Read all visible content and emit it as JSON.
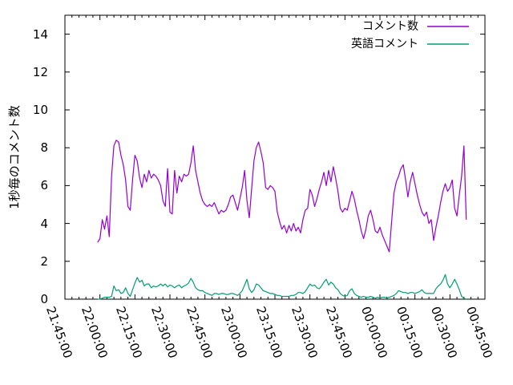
{
  "chart_data": {
    "type": "line",
    "title": "",
    "xlabel": "",
    "ylabel": "1秒毎のコメント数",
    "ylim": [
      0,
      15
    ],
    "yticks": [
      0,
      2,
      4,
      6,
      8,
      10,
      12,
      14
    ],
    "x_minutes_range": [
      0,
      180
    ],
    "x_minor_tick_step_minutes": 3,
    "x_major_tick_step_minutes": 15,
    "grid": false,
    "legend_position": "top-right-inside",
    "colors": {
      "axis": "#000000",
      "background": "#ffffff"
    },
    "xticks": [
      {
        "minute": 0,
        "label": "21:45:00"
      },
      {
        "minute": 15,
        "label": "22:00:00"
      },
      {
        "minute": 30,
        "label": "22:15:00"
      },
      {
        "minute": 45,
        "label": "22:30:00"
      },
      {
        "minute": 60,
        "label": "22:45:00"
      },
      {
        "minute": 75,
        "label": "23:00:00"
      },
      {
        "minute": 90,
        "label": "23:15:00"
      },
      {
        "minute": 105,
        "label": "23:30:00"
      },
      {
        "minute": 120,
        "label": "23:45:00"
      },
      {
        "minute": 135,
        "label": "00:00:00"
      },
      {
        "minute": 150,
        "label": "00:15:00"
      },
      {
        "minute": 165,
        "label": "00:30:00"
      },
      {
        "minute": 180,
        "label": "00:45:00"
      }
    ],
    "series": [
      {
        "name": "コメント数",
        "color": "#9400d3",
        "start_minute": 14,
        "step_minutes": 1,
        "values": [
          3.0,
          3.2,
          4.2,
          3.7,
          4.4,
          3.3,
          6.5,
          8.1,
          8.4,
          8.3,
          7.6,
          7.1,
          6.3,
          4.9,
          4.7,
          6.3,
          7.6,
          7.3,
          6.4,
          5.9,
          6.6,
          6.2,
          6.8,
          6.4,
          6.6,
          6.5,
          6.3,
          6.0,
          5.2,
          4.9,
          6.9,
          4.6,
          4.5,
          6.8,
          5.6,
          6.5,
          6.2,
          6.6,
          6.5,
          6.6,
          7.2,
          8.1,
          6.8,
          6.2,
          5.6,
          5.2,
          5.0,
          4.9,
          5.0,
          4.9,
          5.1,
          4.8,
          4.5,
          4.7,
          4.6,
          4.7,
          5.0,
          5.4,
          5.5,
          5.1,
          4.7,
          5.3,
          5.9,
          6.8,
          5.2,
          4.3,
          5.8,
          7.3,
          8.0,
          8.3,
          7.8,
          7.2,
          5.9,
          5.8,
          6.0,
          5.9,
          5.7,
          4.6,
          4.1,
          3.7,
          3.9,
          3.5,
          3.9,
          3.6,
          4.0,
          3.6,
          3.8,
          3.5,
          4.2,
          4.7,
          4.8,
          5.8,
          5.5,
          4.9,
          5.3,
          5.8,
          6.2,
          6.7,
          6.0,
          6.8,
          6.2,
          7.0,
          6.4,
          5.7,
          4.8,
          4.6,
          4.8,
          4.7,
          5.2,
          5.7,
          5.3,
          4.7,
          4.2,
          3.6,
          3.2,
          3.7,
          4.4,
          4.7,
          4.2,
          3.6,
          3.5,
          3.8,
          3.4,
          3.1,
          2.8,
          2.5,
          4.1,
          5.6,
          6.2,
          6.5,
          6.9,
          7.1,
          6.3,
          5.4,
          6.2,
          6.7,
          6.1,
          5.5,
          5.0,
          4.6,
          4.4,
          4.6,
          4.0,
          4.2,
          3.1,
          3.8,
          4.4,
          5.1,
          5.7,
          6.1,
          5.7,
          5.9,
          6.3,
          4.8,
          4.4,
          5.5,
          6.5,
          8.1,
          4.2
        ]
      },
      {
        "name": "英語コメント",
        "color": "#009e73",
        "start_minute": 14,
        "step_minutes": 1,
        "values": [
          0.0,
          0.0,
          0.05,
          0.1,
          0.1,
          0.1,
          0.15,
          0.7,
          0.45,
          0.5,
          0.3,
          0.35,
          0.6,
          0.3,
          0.15,
          0.5,
          0.85,
          1.15,
          0.9,
          1.0,
          0.7,
          0.8,
          0.8,
          0.6,
          0.7,
          0.65,
          0.7,
          0.8,
          0.7,
          0.8,
          0.65,
          0.75,
          0.7,
          0.6,
          0.7,
          0.75,
          0.6,
          0.7,
          0.75,
          0.85,
          1.1,
          0.9,
          0.6,
          0.5,
          0.45,
          0.45,
          0.35,
          0.3,
          0.25,
          0.2,
          0.3,
          0.3,
          0.25,
          0.3,
          0.3,
          0.25,
          0.25,
          0.3,
          0.3,
          0.25,
          0.2,
          0.3,
          0.45,
          0.75,
          1.05,
          0.55,
          0.35,
          0.5,
          0.8,
          0.75,
          0.6,
          0.45,
          0.4,
          0.35,
          0.3,
          0.3,
          0.25,
          0.2,
          0.2,
          0.15,
          0.15,
          0.15,
          0.15,
          0.2,
          0.2,
          0.25,
          0.35,
          0.35,
          0.3,
          0.4,
          0.6,
          0.8,
          0.7,
          0.75,
          0.6,
          0.55,
          0.7,
          0.9,
          1.05,
          0.75,
          0.9,
          0.8,
          0.6,
          0.5,
          0.3,
          0.2,
          0.15,
          0.2,
          0.45,
          0.55,
          0.3,
          0.2,
          0.15,
          0.1,
          0.15,
          0.1,
          0.1,
          0.15,
          0.1,
          0.05,
          0.1,
          0.05,
          0.1,
          0.1,
          0.05,
          0.1,
          0.15,
          0.2,
          0.3,
          0.45,
          0.4,
          0.35,
          0.35,
          0.3,
          0.35,
          0.35,
          0.3,
          0.35,
          0.4,
          0.5,
          0.35,
          0.3,
          0.3,
          0.3,
          0.3,
          0.55,
          0.7,
          0.8,
          1.0,
          1.3,
          0.8,
          0.6,
          0.8,
          1.05,
          0.8,
          0.5,
          0.15,
          0.05,
          0.0
        ]
      }
    ]
  }
}
